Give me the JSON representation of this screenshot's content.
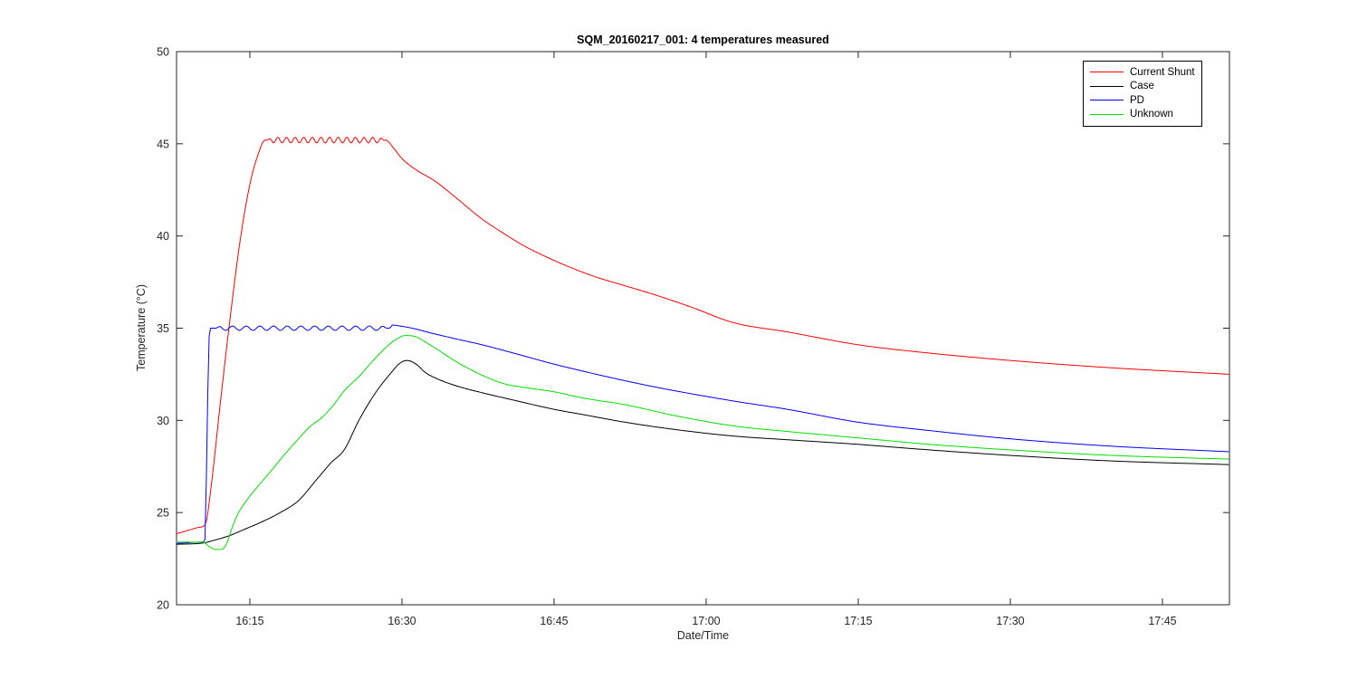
{
  "chart_data": {
    "type": "line",
    "title": "SQM_20160217_001: 4 temperatures measured",
    "xlabel": "Date/Time",
    "ylabel": "Temperature (°C)",
    "x_unit": "minutes after 16:00",
    "xlim": [
      7.77,
      111.61
    ],
    "ylim": [
      20,
      50
    ],
    "grid": false,
    "legend_position": "top-right",
    "x_ticks": [
      {
        "t": 15,
        "label": "16:15"
      },
      {
        "t": 30,
        "label": "16:30"
      },
      {
        "t": 45,
        "label": "16:45"
      },
      {
        "t": 60,
        "label": "17:00"
      },
      {
        "t": 75,
        "label": "17:15"
      },
      {
        "t": 90,
        "label": "17:30"
      },
      {
        "t": 105,
        "label": "17:45"
      }
    ],
    "y_ticks": [
      {
        "v": 20,
        "label": "20"
      },
      {
        "v": 25,
        "label": "25"
      },
      {
        "v": 30,
        "label": "30"
      },
      {
        "v": 35,
        "label": "35"
      },
      {
        "v": 40,
        "label": "40"
      },
      {
        "v": 45,
        "label": "45"
      },
      {
        "v": 50,
        "label": "50"
      }
    ],
    "legend": [
      {
        "label": "Current Shunt",
        "color": "#ff0000"
      },
      {
        "label": "Case",
        "color": "#000000"
      },
      {
        "label": "PD",
        "color": "#0000ff"
      },
      {
        "label": "Unknown",
        "color": "#00e000"
      }
    ],
    "series": [
      {
        "name": "Current Shunt",
        "color": "#ff0000",
        "points": [
          [
            7.77,
            23.85
          ],
          [
            9.0,
            24.05
          ],
          [
            10.0,
            24.2
          ],
          [
            10.6,
            24.35
          ],
          [
            11.2,
            26.5
          ],
          [
            12.0,
            30.5
          ],
          [
            13.0,
            35.3
          ],
          [
            14.0,
            39.6
          ],
          [
            15.0,
            42.8
          ],
          [
            15.8,
            44.4
          ],
          [
            16.5,
            45.2
          ],
          [
            28.4,
            45.2
          ],
          [
            29.2,
            44.75
          ],
          [
            30.0,
            44.2
          ],
          [
            31.5,
            43.55
          ],
          [
            33.2,
            43.0
          ],
          [
            35.5,
            42.0
          ],
          [
            37.7,
            41.0
          ],
          [
            40.0,
            40.15
          ],
          [
            42.1,
            39.45
          ],
          [
            44.5,
            38.8
          ],
          [
            46.6,
            38.3
          ],
          [
            49.0,
            37.8
          ],
          [
            52.0,
            37.3
          ],
          [
            55.0,
            36.8
          ],
          [
            58.5,
            36.15
          ],
          [
            62.7,
            35.3
          ],
          [
            68.0,
            34.8
          ],
          [
            75.0,
            34.1
          ],
          [
            82.0,
            33.65
          ],
          [
            90.0,
            33.25
          ],
          [
            100.0,
            32.85
          ],
          [
            111.6,
            32.5
          ]
        ],
        "ripple": {
          "from": 16.7,
          "to": 28.3,
          "amplitude": 0.16,
          "period": 0.85
        }
      },
      {
        "name": "Case",
        "color": "#000000",
        "points": [
          [
            7.77,
            23.28
          ],
          [
            10.4,
            23.35
          ],
          [
            11.5,
            23.5
          ],
          [
            13.0,
            23.75
          ],
          [
            14.5,
            24.1
          ],
          [
            16.0,
            24.45
          ],
          [
            18.0,
            25.0
          ],
          [
            19.8,
            25.65
          ],
          [
            21.6,
            26.8
          ],
          [
            23.0,
            27.7
          ],
          [
            24.3,
            28.4
          ],
          [
            25.8,
            30.05
          ],
          [
            27.4,
            31.5
          ],
          [
            28.8,
            32.5
          ],
          [
            29.8,
            33.1
          ],
          [
            30.5,
            33.25
          ],
          [
            31.4,
            33.05
          ],
          [
            32.3,
            32.6
          ],
          [
            33.5,
            32.25
          ],
          [
            35.5,
            31.85
          ],
          [
            37.9,
            31.5
          ],
          [
            41.0,
            31.1
          ],
          [
            45.0,
            30.6
          ],
          [
            48.0,
            30.3
          ],
          [
            52.0,
            29.9
          ],
          [
            57.0,
            29.5
          ],
          [
            62.7,
            29.15
          ],
          [
            68.0,
            28.95
          ],
          [
            75.0,
            28.7
          ],
          [
            82.0,
            28.4
          ],
          [
            90.0,
            28.1
          ],
          [
            100.0,
            27.8
          ],
          [
            111.6,
            27.6
          ]
        ]
      },
      {
        "name": "PD",
        "color": "#0000ff",
        "points": [
          [
            7.77,
            23.33
          ],
          [
            10.3,
            23.4
          ],
          [
            10.55,
            23.45
          ],
          [
            10.75,
            28.0
          ],
          [
            10.95,
            34.2
          ],
          [
            11.15,
            35.0
          ],
          [
            28.8,
            35.0
          ],
          [
            29.05,
            35.17
          ],
          [
            29.8,
            35.12
          ],
          [
            31.0,
            35.0
          ],
          [
            33.0,
            34.72
          ],
          [
            35.5,
            34.4
          ],
          [
            37.9,
            34.1
          ],
          [
            41.0,
            33.65
          ],
          [
            45.0,
            33.05
          ],
          [
            48.0,
            32.65
          ],
          [
            52.0,
            32.15
          ],
          [
            56.0,
            31.7
          ],
          [
            62.7,
            31.05
          ],
          [
            68.0,
            30.6
          ],
          [
            75.0,
            29.9
          ],
          [
            82.0,
            29.45
          ],
          [
            90.0,
            29.0
          ],
          [
            100.0,
            28.6
          ],
          [
            111.6,
            28.3
          ]
        ],
        "ripple": {
          "from": 11.6,
          "to": 28.6,
          "amplitude": 0.12,
          "period": 1.35
        }
      },
      {
        "name": "Unknown",
        "color": "#00e000",
        "points": [
          [
            7.77,
            23.4
          ],
          [
            10.4,
            23.38
          ],
          [
            11.0,
            23.15
          ],
          [
            11.6,
            23.0
          ],
          [
            12.2,
            23.0
          ],
          [
            12.7,
            23.3
          ],
          [
            13.2,
            24.1
          ],
          [
            13.8,
            24.9
          ],
          [
            14.6,
            25.6
          ],
          [
            15.6,
            26.3
          ],
          [
            17.0,
            27.2
          ],
          [
            18.5,
            28.2
          ],
          [
            19.8,
            29.0
          ],
          [
            21.0,
            29.7
          ],
          [
            22.0,
            30.1
          ],
          [
            23.2,
            30.8
          ],
          [
            24.3,
            31.6
          ],
          [
            25.8,
            32.4
          ],
          [
            27.0,
            33.15
          ],
          [
            28.3,
            33.9
          ],
          [
            29.3,
            34.35
          ],
          [
            30.3,
            34.6
          ],
          [
            31.3,
            34.55
          ],
          [
            32.3,
            34.25
          ],
          [
            33.5,
            33.85
          ],
          [
            35.0,
            33.3
          ],
          [
            37.9,
            32.45
          ],
          [
            40.0,
            32.0
          ],
          [
            42.5,
            31.75
          ],
          [
            45.0,
            31.55
          ],
          [
            48.0,
            31.2
          ],
          [
            52.0,
            30.85
          ],
          [
            57.0,
            30.25
          ],
          [
            62.7,
            29.7
          ],
          [
            68.0,
            29.4
          ],
          [
            75.0,
            29.05
          ],
          [
            82.0,
            28.7
          ],
          [
            90.0,
            28.4
          ],
          [
            100.0,
            28.1
          ],
          [
            111.6,
            27.9
          ]
        ]
      }
    ],
    "axis_color": "#262626",
    "background_color": "#ffffff"
  }
}
